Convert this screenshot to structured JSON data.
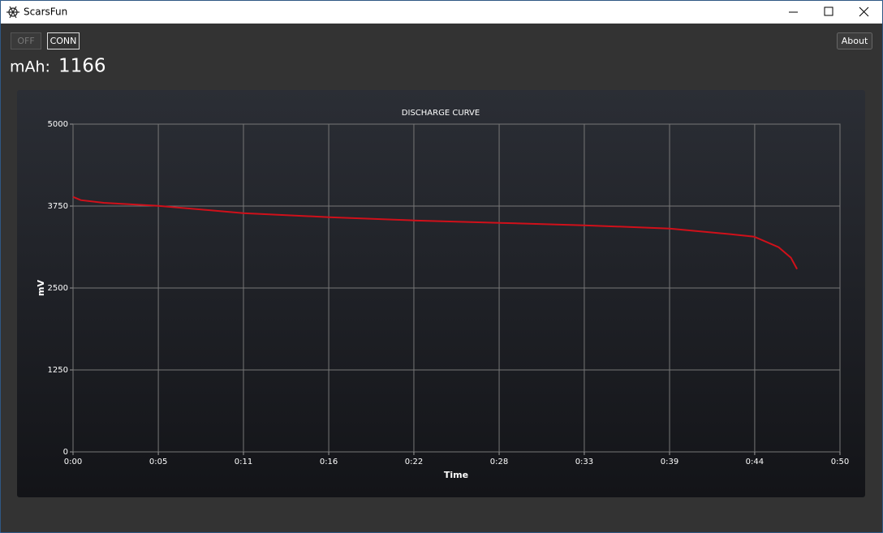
{
  "window": {
    "title": "ScarsFun"
  },
  "toolbar": {
    "off": "OFF",
    "conn": "CONN",
    "about": "About"
  },
  "readout": {
    "label": "mAh:",
    "value": "1166"
  },
  "chart_data": {
    "type": "line",
    "title": "DISCHARGE CURVE",
    "x_label": "Time",
    "y_label": "mV",
    "xlim": [
      0,
      50
    ],
    "ylim": [
      0,
      5000
    ],
    "xticks": [
      {
        "value": 0,
        "label": "0:00"
      },
      {
        "value": 5.56,
        "label": "0:05"
      },
      {
        "value": 11.11,
        "label": "0:11"
      },
      {
        "value": 16.67,
        "label": "0:16"
      },
      {
        "value": 22.22,
        "label": "0:22"
      },
      {
        "value": 27.78,
        "label": "0:28"
      },
      {
        "value": 33.33,
        "label": "0:33"
      },
      {
        "value": 38.89,
        "label": "0:39"
      },
      {
        "value": 44.44,
        "label": "0:44"
      },
      {
        "value": 50,
        "label": "0:50"
      }
    ],
    "yticks": [
      0,
      1250,
      2500,
      3750,
      5000
    ],
    "grid": true,
    "color": "#d0101a",
    "x": [
      0,
      0.5,
      2,
      5.56,
      11.1,
      16.7,
      22.2,
      27.8,
      33.3,
      38.9,
      42.9,
      44.4,
      46,
      46.8,
      47.2
    ],
    "values": [
      3890,
      3840,
      3800,
      3753,
      3642,
      3580,
      3531,
      3494,
      3457,
      3407,
      3321,
      3284,
      3123,
      2963,
      2790
    ]
  }
}
